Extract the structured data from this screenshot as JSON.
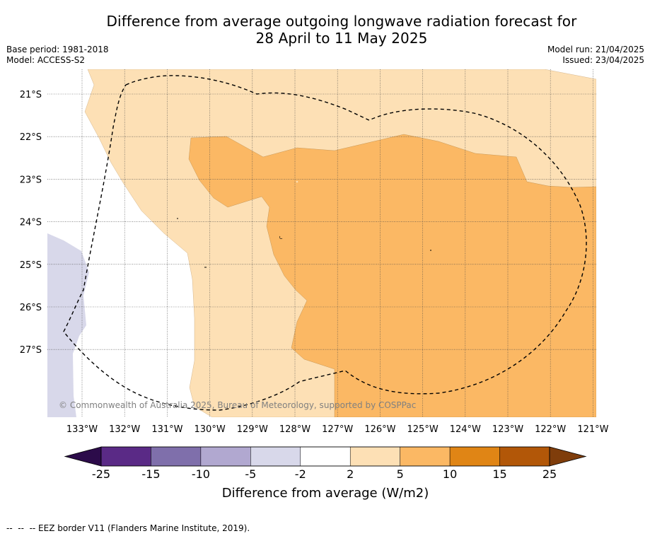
{
  "title_line1": "Difference from average outgoing longwave radiation forecast for",
  "title_line2": "28 April to 11 May 2025",
  "meta_left": {
    "base_period": "Base period: 1981-2018",
    "model": "Model: ACCESS-S2"
  },
  "meta_right": {
    "model_run": "Model run: 21/04/2025",
    "issued": "Issued: 23/04/2025"
  },
  "map": {
    "lon_ticks": [
      "133°W",
      "132°W",
      "131°W",
      "130°W",
      "129°W",
      "128°W",
      "127°W",
      "126°W",
      "125°W",
      "124°W",
      "123°W",
      "122°W",
      "121°W"
    ],
    "lat_ticks": [
      "21°S",
      "22°S",
      "23°S",
      "24°S",
      "25°S",
      "26°S",
      "27°S"
    ],
    "credit": "© Commonwealth of Australia 2025, Bureau of Meteorology, supported by COSPPac"
  },
  "colorbar": {
    "title": "Difference from average (W/m2)",
    "tick_labels": [
      "-25",
      "-15",
      "-10",
      "-5",
      "-2",
      "2",
      "5",
      "10",
      "15",
      "25"
    ],
    "colors": [
      "#5a2a86",
      "#7f6fab",
      "#b1a8d0",
      "#d8d8ea",
      "#ffffff",
      "#fde0b5",
      "#fbb864",
      "#e08515",
      "#b25708"
    ],
    "under_color": "#2c0b4a",
    "over_color": "#7f3d0b"
  },
  "footnote": "--  --  -- EEZ border V11 (Flanders Marine Institute, 2019)."
}
